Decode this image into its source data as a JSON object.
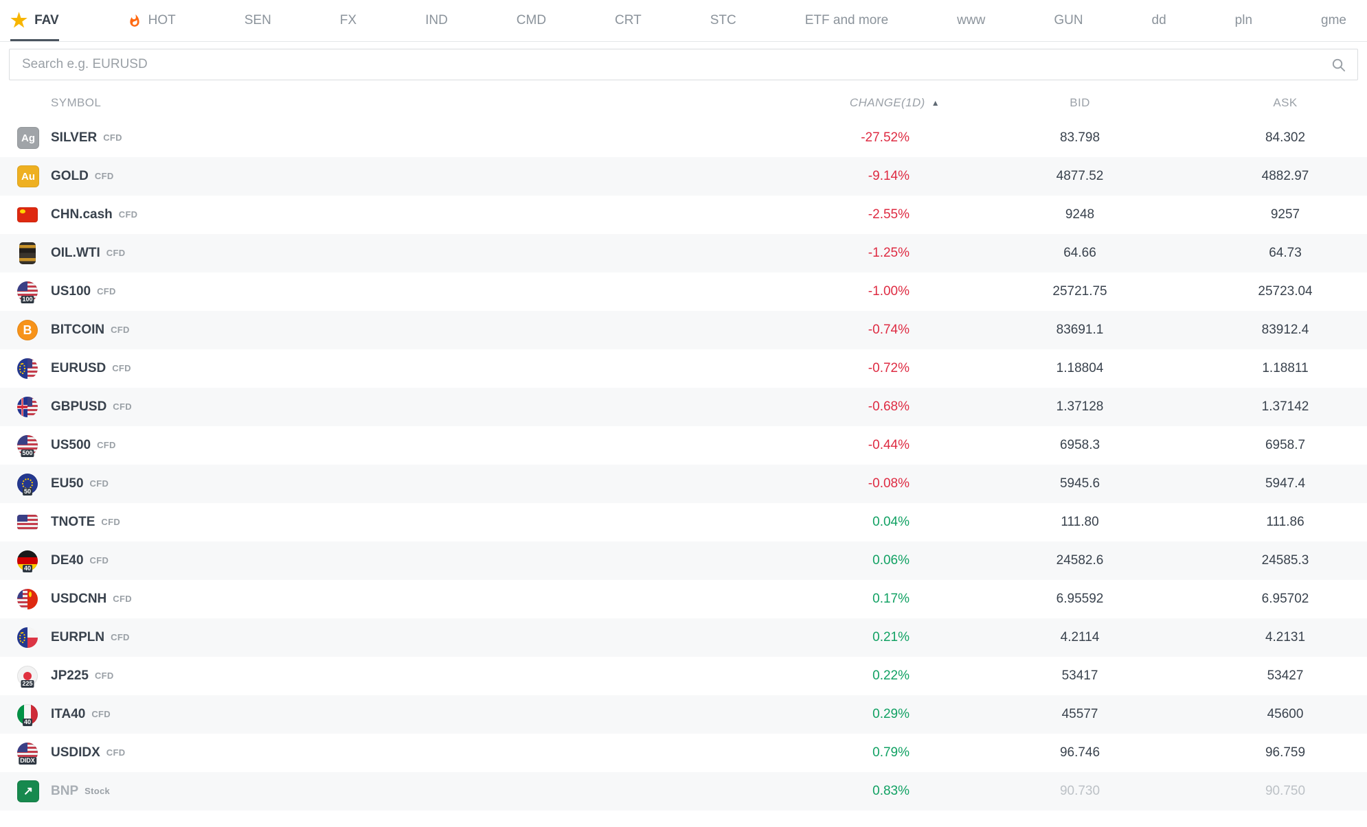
{
  "tabs": [
    {
      "label": "FAV",
      "icon": "star-icon",
      "active": true
    },
    {
      "label": "HOT",
      "icon": "flame-icon",
      "active": false
    },
    {
      "label": "SEN",
      "active": false
    },
    {
      "label": "FX",
      "active": false
    },
    {
      "label": "IND",
      "active": false
    },
    {
      "label": "CMD",
      "active": false
    },
    {
      "label": "CRT",
      "active": false
    },
    {
      "label": "STC",
      "active": false
    },
    {
      "label": "ETF and more",
      "active": false
    },
    {
      "label": "www",
      "active": false
    },
    {
      "label": "GUN",
      "active": false
    },
    {
      "label": "dd",
      "active": false
    },
    {
      "label": "pln",
      "active": false
    },
    {
      "label": "gme",
      "active": false
    }
  ],
  "search": {
    "placeholder": "Search e.g. EURUSD",
    "value": "",
    "icon": "search-icon"
  },
  "colors": {
    "negative": "#de2b42",
    "positive": "#11a163",
    "star": "#f7b500",
    "flame": "#ff6a13"
  },
  "table": {
    "headers": {
      "symbol": "SYMBOL",
      "change": "CHANGE(1D)",
      "sort_indicator": "▲",
      "bid": "BID",
      "ask": "ASK"
    },
    "rows": [
      {
        "icon": {
          "kind": "badge",
          "bg": "#a0a4a8",
          "label": "Ag"
        },
        "symbol": "SILVER",
        "instrument_type": "CFD",
        "change": "-27.52%",
        "bid": "83.798",
        "ask": "84.302",
        "direction": "down",
        "dimmed": false
      },
      {
        "icon": {
          "kind": "badge",
          "bg": "#eeb021",
          "label": "Au"
        },
        "symbol": "GOLD",
        "instrument_type": "CFD",
        "change": "-9.14%",
        "bid": "4877.52",
        "ask": "4882.97",
        "direction": "down",
        "dimmed": false
      },
      {
        "icon": {
          "kind": "flag-rect",
          "flag": "cn"
        },
        "symbol": "CHN.cash",
        "instrument_type": "CFD",
        "change": "-2.55%",
        "bid": "9248",
        "ask": "9257",
        "direction": "down",
        "dimmed": false
      },
      {
        "icon": {
          "kind": "barrel"
        },
        "symbol": "OIL.WTI",
        "instrument_type": "CFD",
        "change": "-1.25%",
        "bid": "64.66",
        "ask": "64.73",
        "direction": "down",
        "dimmed": false
      },
      {
        "icon": {
          "kind": "flag-circle",
          "flag": "us",
          "sub": "100"
        },
        "symbol": "US100",
        "instrument_type": "CFD",
        "change": "-1.00%",
        "bid": "25721.75",
        "ask": "25723.04",
        "direction": "down",
        "dimmed": false
      },
      {
        "icon": {
          "kind": "bitcoin"
        },
        "symbol": "BITCOIN",
        "instrument_type": "CFD",
        "change": "-0.74%",
        "bid": "83691.1",
        "ask": "83912.4",
        "direction": "down",
        "dimmed": false
      },
      {
        "icon": {
          "kind": "pair",
          "left": "eu",
          "right": "us"
        },
        "symbol": "EURUSD",
        "instrument_type": "CFD",
        "change": "-0.72%",
        "bid": "1.18804",
        "ask": "1.18811",
        "direction": "down",
        "dimmed": false
      },
      {
        "icon": {
          "kind": "pair",
          "left": "gb",
          "right": "us"
        },
        "symbol": "GBPUSD",
        "instrument_type": "CFD",
        "change": "-0.68%",
        "bid": "1.37128",
        "ask": "1.37142",
        "direction": "down",
        "dimmed": false
      },
      {
        "icon": {
          "kind": "flag-circle",
          "flag": "us",
          "sub": "500"
        },
        "symbol": "US500",
        "instrument_type": "CFD",
        "change": "-0.44%",
        "bid": "6958.3",
        "ask": "6958.7",
        "direction": "down",
        "dimmed": false
      },
      {
        "icon": {
          "kind": "flag-circle",
          "flag": "eu",
          "sub": "50"
        },
        "symbol": "EU50",
        "instrument_type": "CFD",
        "change": "-0.08%",
        "bid": "5945.6",
        "ask": "5947.4",
        "direction": "down",
        "dimmed": false
      },
      {
        "icon": {
          "kind": "flag-rect",
          "flag": "us"
        },
        "symbol": "TNOTE",
        "instrument_type": "CFD",
        "change": "0.04%",
        "bid": "111.80",
        "ask": "111.86",
        "direction": "up",
        "dimmed": false
      },
      {
        "icon": {
          "kind": "flag-circle",
          "flag": "de",
          "sub": "40"
        },
        "symbol": "DE40",
        "instrument_type": "CFD",
        "change": "0.06%",
        "bid": "24582.6",
        "ask": "24585.3",
        "direction": "up",
        "dimmed": false
      },
      {
        "icon": {
          "kind": "pair",
          "left": "us",
          "right": "cn"
        },
        "symbol": "USDCNH",
        "instrument_type": "CFD",
        "change": "0.17%",
        "bid": "6.95592",
        "ask": "6.95702",
        "direction": "up",
        "dimmed": false
      },
      {
        "icon": {
          "kind": "pair",
          "left": "eu",
          "right": "pl"
        },
        "symbol": "EURPLN",
        "instrument_type": "CFD",
        "change": "0.21%",
        "bid": "4.2114",
        "ask": "4.2131",
        "direction": "up",
        "dimmed": false
      },
      {
        "icon": {
          "kind": "flag-circle",
          "flag": "jp",
          "sub": "225"
        },
        "symbol": "JP225",
        "instrument_type": "CFD",
        "change": "0.22%",
        "bid": "53417",
        "ask": "53427",
        "direction": "up",
        "dimmed": false
      },
      {
        "icon": {
          "kind": "flag-circle",
          "flag": "it",
          "sub": "40"
        },
        "symbol": "ITA40",
        "instrument_type": "CFD",
        "change": "0.29%",
        "bid": "45577",
        "ask": "45600",
        "direction": "up",
        "dimmed": false
      },
      {
        "icon": {
          "kind": "flag-circle",
          "flag": "us",
          "sub": "DIDX"
        },
        "symbol": "USDIDX",
        "instrument_type": "CFD",
        "change": "0.79%",
        "bid": "96.746",
        "ask": "96.759",
        "direction": "up",
        "dimmed": false
      },
      {
        "icon": {
          "kind": "chart"
        },
        "symbol": "BNP",
        "instrument_type": "Stock",
        "change": "0.83%",
        "bid": "90.730",
        "ask": "90.750",
        "direction": "up",
        "dimmed": true
      }
    ]
  }
}
